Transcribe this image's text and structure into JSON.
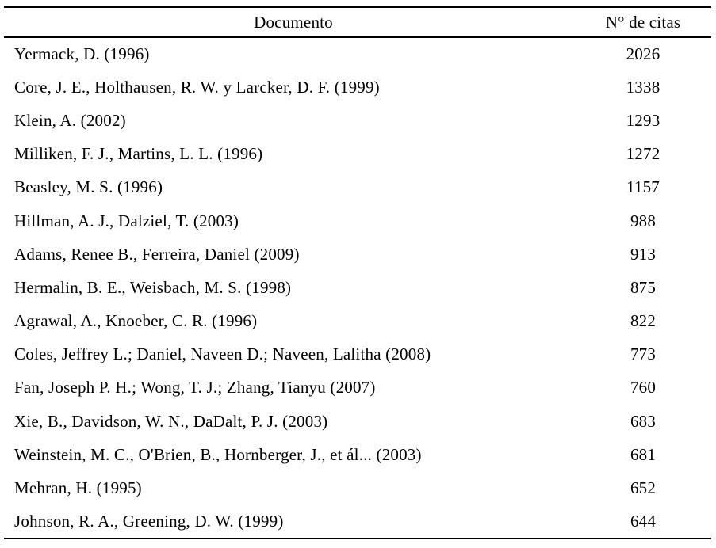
{
  "page": {
    "background_color": "#ffffff",
    "text_color": "#000000",
    "rule_color": "#000000"
  },
  "table": {
    "headers": {
      "documento": "Documento",
      "citas": "N° de citas"
    },
    "rows": [
      {
        "documento": "Yermack, D. (1996)",
        "citas": "2026"
      },
      {
        "documento": "Core, J. E., Holthausen, R. W. y Larcker, D. F. (1999)",
        "citas": "1338"
      },
      {
        "documento": "Klein, A. (2002)",
        "citas": "1293"
      },
      {
        "documento": "Milliken, F. J., Martins, L. L. (1996)",
        "citas": "1272"
      },
      {
        "documento": "Beasley, M. S. (1996)",
        "citas": "1157"
      },
      {
        "documento": "Hillman, A. J., Dalziel, T. (2003)",
        "citas": "988"
      },
      {
        "documento": "Adams, Renee B., Ferreira, Daniel (2009)",
        "citas": "913"
      },
      {
        "documento": "Hermalin, B. E., Weisbach, M. S. (1998)",
        "citas": "875"
      },
      {
        "documento": "Agrawal, A., Knoeber, C. R. (1996)",
        "citas": "822"
      },
      {
        "documento": "Coles, Jeffrey L.; Daniel, Naveen D.; Naveen, Lalitha (2008)",
        "citas": "773"
      },
      {
        "documento": "Fan, Joseph P. H.; Wong, T. J.; Zhang, Tianyu (2007)",
        "citas": "760"
      },
      {
        "documento": "Xie, B., Davidson, W. N., DaDalt, P. J. (2003)",
        "citas": "683"
      },
      {
        "documento": "Weinstein, M. C., O'Brien, B., Hornberger, J., et ál... (2003)",
        "citas": "681"
      },
      {
        "documento": "Mehran, H. (1995)",
        "citas": "652"
      },
      {
        "documento": "Johnson, R. A., Greening, D. W. (1999)",
        "citas": "644"
      }
    ]
  },
  "chart_data": {
    "type": "table",
    "columns": [
      "Documento",
      "N° de citas"
    ],
    "rows": [
      [
        "Yermack, D. (1996)",
        2026
      ],
      [
        "Core, J. E., Holthausen, R. W. y Larcker, D. F. (1999)",
        1338
      ],
      [
        "Klein, A. (2002)",
        1293
      ],
      [
        "Milliken, F. J., Martins, L. L. (1996)",
        1272
      ],
      [
        "Beasley, M. S. (1996)",
        1157
      ],
      [
        "Hillman, A. J., Dalziel, T. (2003)",
        988
      ],
      [
        "Adams, Renee B., Ferreira, Daniel (2009)",
        913
      ],
      [
        "Hermalin, B. E., Weisbach, M. S. (1998)",
        875
      ],
      [
        "Agrawal, A., Knoeber, C. R. (1996)",
        822
      ],
      [
        "Coles, Jeffrey L.; Daniel, Naveen D.; Naveen, Lalitha (2008)",
        773
      ],
      [
        "Fan, Joseph P. H.; Wong, T. J.; Zhang, Tianyu (2007)",
        760
      ],
      [
        "Xie, B., Davidson, W. N., DaDalt, P. J. (2003)",
        683
      ],
      [
        "Weinstein, M. C., O'Brien, B., Hornberger, J., et ál... (2003)",
        681
      ],
      [
        "Mehran, H. (1995)",
        652
      ],
      [
        "Johnson, R. A., Greening, D. W. (1999)",
        644
      ]
    ]
  }
}
